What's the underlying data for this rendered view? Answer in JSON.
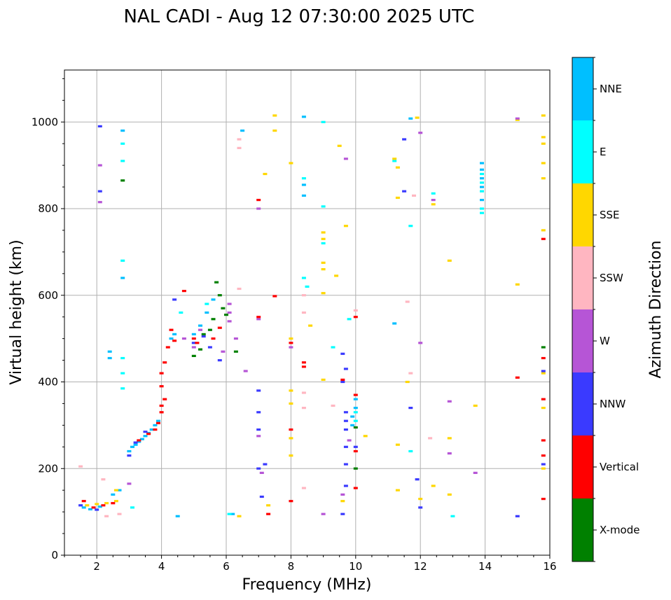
{
  "chart_data": {
    "type": "scatter",
    "title": "NAL CADI - Aug 12 07:30:00 2025 UTC",
    "xlabel": "Frequency (MHz)",
    "ylabel": "Virtual height (km)",
    "xlim": [
      1,
      16
    ],
    "ylim": [
      0,
      1120
    ],
    "xticks": [
      2,
      4,
      6,
      8,
      10,
      12,
      14,
      16
    ],
    "yticks": [
      0,
      200,
      400,
      600,
      800,
      1000
    ],
    "grid": true,
    "colorbar": {
      "title": "Azimuth Direction",
      "categories": [
        {
          "name": "X-mode",
          "color": "#008000"
        },
        {
          "name": "Vertical",
          "color": "#ff0000"
        },
        {
          "name": "NNW",
          "color": "#3a3aff"
        },
        {
          "name": "W",
          "color": "#b655d6"
        },
        {
          "name": "SSW",
          "color": "#ffb6c1"
        },
        {
          "name": "SSE",
          "color": "#ffd700"
        },
        {
          "name": "E",
          "color": "#00ffff"
        },
        {
          "name": "NNE",
          "color": "#00bfff"
        }
      ]
    },
    "series": [
      {
        "name": "NNE",
        "points": [
          [
            1.6,
            110
          ],
          [
            1.8,
            106
          ],
          [
            2.1,
            112
          ],
          [
            2.4,
            470
          ],
          [
            2.4,
            455
          ],
          [
            2.5,
            140
          ],
          [
            2.7,
            150
          ],
          [
            2.8,
            980
          ],
          [
            2.8,
            640
          ],
          [
            3.0,
            240
          ],
          [
            3.1,
            250
          ],
          [
            3.2,
            255
          ],
          [
            3.3,
            262
          ],
          [
            3.4,
            268
          ],
          [
            3.5,
            275
          ],
          [
            3.6,
            282
          ],
          [
            3.7,
            290
          ],
          [
            3.8,
            300
          ],
          [
            3.9,
            310
          ],
          [
            4.3,
            500
          ],
          [
            4.4,
            510
          ],
          [
            4.5,
            90
          ],
          [
            5.0,
            510
          ],
          [
            5.2,
            530
          ],
          [
            5.4,
            560
          ],
          [
            5.6,
            590
          ],
          [
            6.2,
            95
          ],
          [
            6.5,
            980
          ],
          [
            8.4,
            1012
          ],
          [
            8.4,
            855
          ],
          [
            8.4,
            830
          ],
          [
            9.9,
            300
          ],
          [
            9.9,
            320
          ],
          [
            10.0,
            340
          ],
          [
            10.0,
            360
          ],
          [
            11.2,
            535
          ],
          [
            11.7,
            1008
          ],
          [
            13.9,
            905
          ],
          [
            13.9,
            890
          ],
          [
            13.9,
            870
          ],
          [
            13.9,
            850
          ],
          [
            13.9,
            820
          ]
        ]
      },
      {
        "name": "E",
        "points": [
          [
            2.8,
            950
          ],
          [
            2.8,
            910
          ],
          [
            2.8,
            680
          ],
          [
            2.8,
            455
          ],
          [
            2.8,
            420
          ],
          [
            2.8,
            385
          ],
          [
            3.1,
            110
          ],
          [
            4.6,
            560
          ],
          [
            5.4,
            580
          ],
          [
            6.1,
            95
          ],
          [
            8.4,
            870
          ],
          [
            8.4,
            640
          ],
          [
            8.5,
            620
          ],
          [
            9.0,
            1000
          ],
          [
            9.0,
            805
          ],
          [
            9.0,
            720
          ],
          [
            9.3,
            480
          ],
          [
            9.8,
            545
          ],
          [
            10.0,
            330
          ],
          [
            10.0,
            310
          ],
          [
            11.2,
            910
          ],
          [
            11.7,
            760
          ],
          [
            11.7,
            240
          ],
          [
            12.4,
            835
          ],
          [
            13.0,
            90
          ],
          [
            13.9,
            880
          ],
          [
            13.9,
            860
          ],
          [
            13.9,
            840
          ],
          [
            13.9,
            800
          ],
          [
            13.9,
            790
          ]
        ]
      },
      {
        "name": "SSE",
        "points": [
          [
            1.7,
            115
          ],
          [
            2.0,
            118
          ],
          [
            2.3,
            120
          ],
          [
            2.6,
            125
          ],
          [
            2.6,
            150
          ],
          [
            6.4,
            90
          ],
          [
            7.2,
            880
          ],
          [
            7.3,
            115
          ],
          [
            7.5,
            1015
          ],
          [
            7.5,
            980
          ],
          [
            8.0,
            905
          ],
          [
            8.0,
            500
          ],
          [
            8.0,
            380
          ],
          [
            8.0,
            350
          ],
          [
            8.0,
            270
          ],
          [
            8.0,
            230
          ],
          [
            8.6,
            530
          ],
          [
            9.0,
            745
          ],
          [
            9.0,
            730
          ],
          [
            9.0,
            675
          ],
          [
            9.0,
            660
          ],
          [
            9.0,
            605
          ],
          [
            9.0,
            405
          ],
          [
            9.4,
            645
          ],
          [
            9.5,
            945
          ],
          [
            9.6,
            125
          ],
          [
            9.7,
            760
          ],
          [
            10.3,
            275
          ],
          [
            11.2,
            915
          ],
          [
            11.3,
            895
          ],
          [
            11.3,
            825
          ],
          [
            11.3,
            255
          ],
          [
            11.3,
            150
          ],
          [
            11.6,
            400
          ],
          [
            11.9,
            1010
          ],
          [
            12.0,
            130
          ],
          [
            12.4,
            810
          ],
          [
            12.4,
            160
          ],
          [
            12.9,
            680
          ],
          [
            12.9,
            270
          ],
          [
            12.9,
            140
          ],
          [
            13.7,
            345
          ],
          [
            15.0,
            1005
          ],
          [
            15.0,
            625
          ],
          [
            15.8,
            1015
          ],
          [
            15.8,
            965
          ],
          [
            15.8,
            950
          ],
          [
            15.8,
            905
          ],
          [
            15.8,
            870
          ],
          [
            15.8,
            750
          ],
          [
            15.8,
            420
          ],
          [
            15.8,
            340
          ],
          [
            15.8,
            200
          ]
        ]
      },
      {
        "name": "SSW",
        "points": [
          [
            1.5,
            205
          ],
          [
            2.2,
            175
          ],
          [
            2.3,
            90
          ],
          [
            2.7,
            95
          ],
          [
            6.4,
            960
          ],
          [
            6.4,
            940
          ],
          [
            6.4,
            615
          ],
          [
            8.4,
            600
          ],
          [
            8.4,
            560
          ],
          [
            8.4,
            375
          ],
          [
            8.4,
            340
          ],
          [
            8.4,
            155
          ],
          [
            9.3,
            345
          ],
          [
            10.0,
            565
          ],
          [
            11.6,
            585
          ],
          [
            11.7,
            420
          ],
          [
            11.8,
            830
          ],
          [
            12.3,
            270
          ]
        ]
      },
      {
        "name": "W",
        "points": [
          [
            2.1,
            815
          ],
          [
            2.1,
            900
          ],
          [
            3.0,
            165
          ],
          [
            4.7,
            500
          ],
          [
            5.0,
            480
          ],
          [
            5.2,
            520
          ],
          [
            5.9,
            470
          ],
          [
            6.1,
            560
          ],
          [
            6.1,
            540
          ],
          [
            6.1,
            580
          ],
          [
            6.3,
            500
          ],
          [
            6.6,
            425
          ],
          [
            7.0,
            545
          ],
          [
            7.0,
            800
          ],
          [
            7.0,
            275
          ],
          [
            7.1,
            190
          ],
          [
            8.0,
            480
          ],
          [
            9.0,
            95
          ],
          [
            9.6,
            140
          ],
          [
            9.7,
            915
          ],
          [
            9.8,
            265
          ],
          [
            12.0,
            975
          ],
          [
            12.0,
            490
          ],
          [
            12.4,
            820
          ],
          [
            12.9,
            355
          ],
          [
            12.9,
            235
          ],
          [
            13.7,
            190
          ],
          [
            15.0,
            1008
          ]
        ]
      },
      {
        "name": "NNW",
        "points": [
          [
            1.5,
            115
          ],
          [
            2.0,
            105
          ],
          [
            2.1,
            840
          ],
          [
            2.1,
            990
          ],
          [
            3.0,
            230
          ],
          [
            3.2,
            260
          ],
          [
            3.5,
            285
          ],
          [
            4.4,
            590
          ],
          [
            5.0,
            490
          ],
          [
            5.3,
            505
          ],
          [
            5.5,
            480
          ],
          [
            5.8,
            450
          ],
          [
            7.0,
            380
          ],
          [
            7.0,
            330
          ],
          [
            7.0,
            290
          ],
          [
            7.0,
            200
          ],
          [
            7.1,
            135
          ],
          [
            7.2,
            210
          ],
          [
            9.6,
            465
          ],
          [
            9.6,
            400
          ],
          [
            9.7,
            430
          ],
          [
            9.7,
            330
          ],
          [
            9.7,
            310
          ],
          [
            9.7,
            290
          ],
          [
            9.7,
            250
          ],
          [
            9.7,
            210
          ],
          [
            9.7,
            160
          ],
          [
            9.6,
            95
          ],
          [
            10.0,
            250
          ],
          [
            11.5,
            960
          ],
          [
            11.5,
            840
          ],
          [
            11.7,
            340
          ],
          [
            11.9,
            175
          ],
          [
            12.0,
            110
          ],
          [
            15.0,
            90
          ],
          [
            15.8,
            425
          ],
          [
            15.8,
            210
          ]
        ]
      },
      {
        "name": "Vertical",
        "points": [
          [
            1.6,
            125
          ],
          [
            1.9,
            110
          ],
          [
            2.2,
            115
          ],
          [
            2.5,
            120
          ],
          [
            3.3,
            265
          ],
          [
            3.6,
            280
          ],
          [
            3.8,
            290
          ],
          [
            3.9,
            305
          ],
          [
            4.0,
            330
          ],
          [
            4.0,
            345
          ],
          [
            4.1,
            360
          ],
          [
            4.0,
            390
          ],
          [
            4.0,
            420
          ],
          [
            4.1,
            445
          ],
          [
            4.2,
            480
          ],
          [
            4.3,
            520
          ],
          [
            4.4,
            495
          ],
          [
            4.7,
            610
          ],
          [
            5.0,
            500
          ],
          [
            5.1,
            490
          ],
          [
            5.6,
            500
          ],
          [
            5.8,
            525
          ],
          [
            7.0,
            820
          ],
          [
            7.0,
            550
          ],
          [
            7.5,
            598
          ],
          [
            7.3,
            95
          ],
          [
            8.0,
            490
          ],
          [
            8.0,
            290
          ],
          [
            8.0,
            125
          ],
          [
            8.4,
            445
          ],
          [
            8.4,
            435
          ],
          [
            9.6,
            405
          ],
          [
            10.0,
            550
          ],
          [
            10.0,
            370
          ],
          [
            10.0,
            240
          ],
          [
            10.0,
            155
          ],
          [
            15.0,
            410
          ],
          [
            15.8,
            730
          ],
          [
            15.8,
            455
          ],
          [
            15.8,
            360
          ],
          [
            15.8,
            265
          ],
          [
            15.8,
            230
          ],
          [
            15.8,
            130
          ]
        ]
      },
      {
        "name": "X-mode",
        "points": [
          [
            2.8,
            865
          ],
          [
            5.0,
            460
          ],
          [
            5.2,
            475
          ],
          [
            5.3,
            510
          ],
          [
            5.5,
            520
          ],
          [
            5.6,
            545
          ],
          [
            5.7,
            630
          ],
          [
            5.8,
            600
          ],
          [
            5.9,
            570
          ],
          [
            6.0,
            555
          ],
          [
            6.3,
            470
          ],
          [
            10.0,
            295
          ],
          [
            10.0,
            200
          ],
          [
            15.8,
            480
          ]
        ]
      }
    ]
  }
}
